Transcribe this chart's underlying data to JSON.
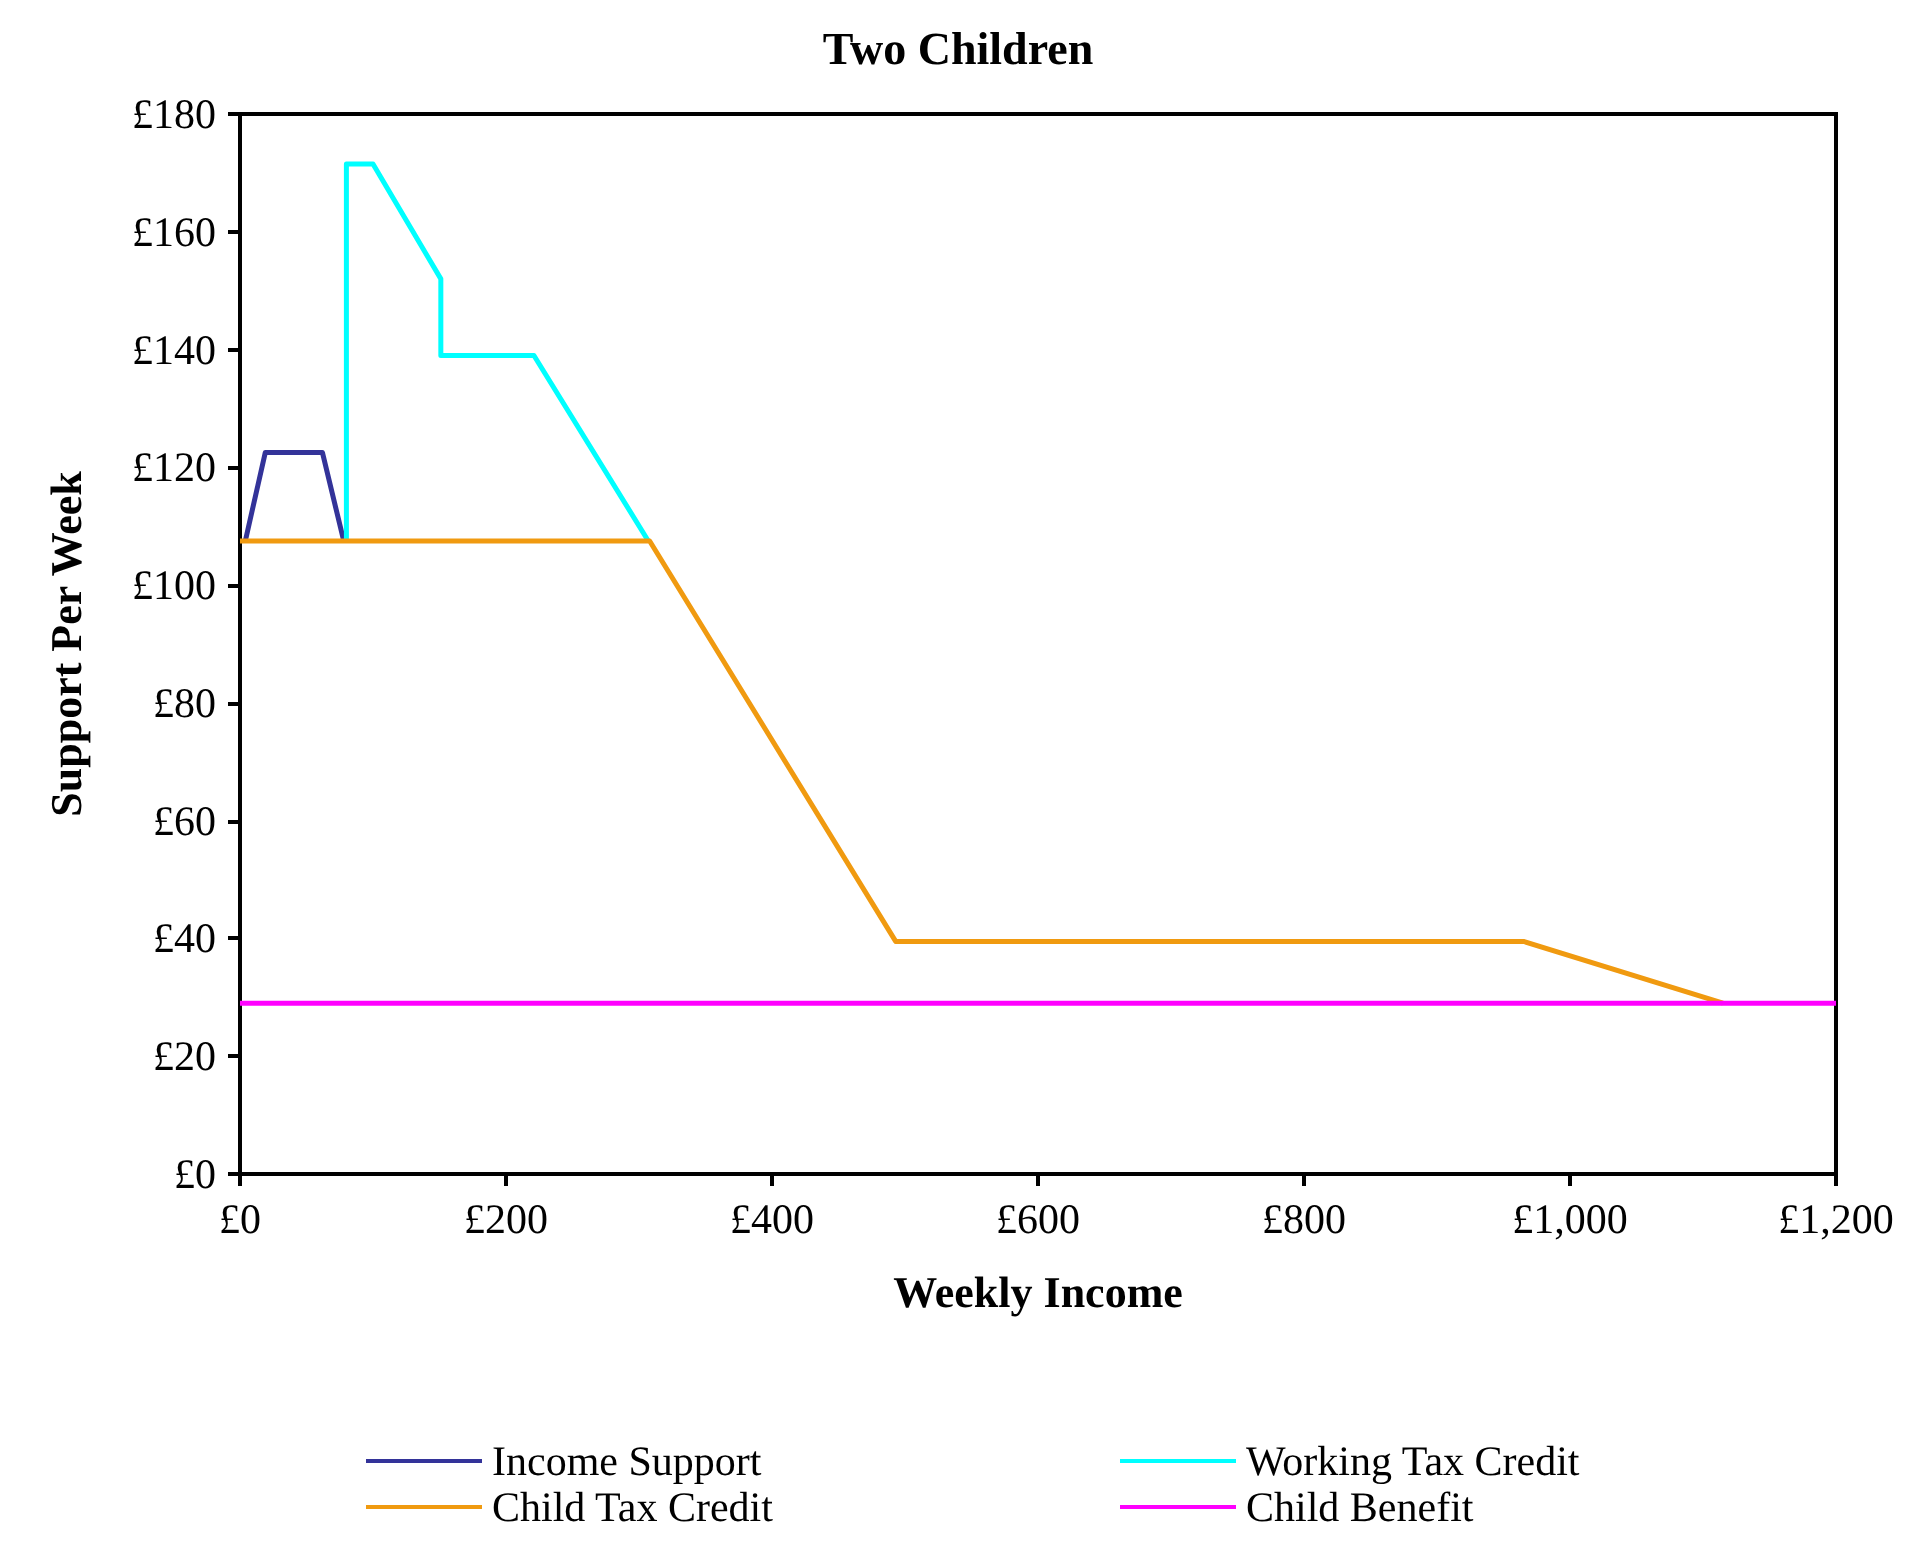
{
  "chart_data": {
    "type": "line",
    "title": "Two Children",
    "xlabel": "Weekly Income",
    "ylabel": "Support Per Week",
    "series": [
      {
        "name": "Income Support",
        "color": "#333399",
        "x": [
          4,
          19,
          62,
          78
        ],
        "values": [
          107.5,
          122.5,
          122.5,
          107.5
        ]
      },
      {
        "name": "Working Tax Credit",
        "color": "#00ffff",
        "x": [
          80,
          80,
          100,
          151,
          151,
          221,
          307
        ],
        "values": [
          107.5,
          171.5,
          171.5,
          152,
          139,
          139,
          107.5
        ]
      },
      {
        "name": "Child Tax Credit",
        "color": "#f09a10",
        "x": [
          0,
          308,
          493,
          965,
          1115
        ],
        "values": [
          107.5,
          107.5,
          39.5,
          39.5,
          29
        ]
      },
      {
        "name": "Child Benefit",
        "color": "#ff00ff",
        "x": [
          0,
          1200
        ],
        "values": [
          29,
          29
        ]
      }
    ],
    "xlim": [
      0,
      1200
    ],
    "xticks": [
      {
        "value": 0,
        "label": "£0"
      },
      {
        "value": 200,
        "label": "£200"
      },
      {
        "value": 400,
        "label": "£400"
      },
      {
        "value": 600,
        "label": "£600"
      },
      {
        "value": 800,
        "label": "£800"
      },
      {
        "value": 1000,
        "label": "£1,000"
      },
      {
        "value": 1200,
        "label": "£1,200"
      }
    ],
    "ylim": [
      0,
      180
    ],
    "yticks": [
      {
        "value": 0,
        "label": "£0"
      },
      {
        "value": 20,
        "label": "£20"
      },
      {
        "value": 40,
        "label": "£40"
      },
      {
        "value": 60,
        "label": "£60"
      },
      {
        "value": 80,
        "label": "£80"
      },
      {
        "value": 100,
        "label": "£100"
      },
      {
        "value": 120,
        "label": "£120"
      },
      {
        "value": 140,
        "label": "£140"
      },
      {
        "value": 160,
        "label": "£160"
      },
      {
        "value": 180,
        "label": "£180"
      }
    ],
    "grid": false,
    "legend": "bottom",
    "marker": "none",
    "line_style": "solid"
  }
}
